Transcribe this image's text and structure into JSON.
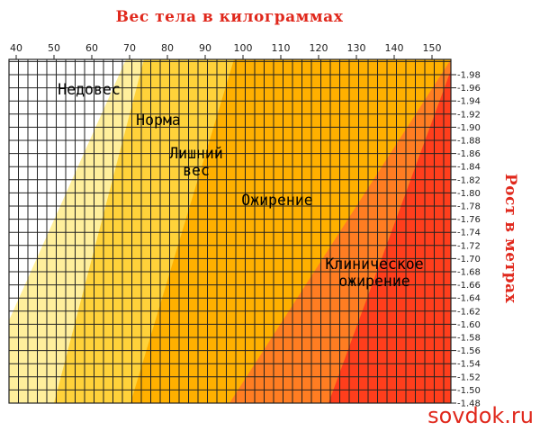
{
  "chart_data": {
    "type": "heatmap",
    "title": "Вес тела в килограммах",
    "ylabel": "Рост в метрах",
    "xlim": [
      40,
      155
    ],
    "ylim": [
      1.48,
      2.0
    ],
    "x_ticks": [
      40,
      50,
      60,
      70,
      80,
      90,
      100,
      110,
      120,
      130,
      140,
      150
    ],
    "y_ticks": [
      "1.98",
      "1.96",
      "1.94",
      "1.92",
      "1.90",
      "1.88",
      "1.86",
      "1.84",
      "1.82",
      "1.80",
      "1.78",
      "1.76",
      "1.74",
      "1.72",
      "1.70",
      "1.68",
      "1.66",
      "1.64",
      "1.62",
      "1.60",
      "1.58",
      "1.56",
      "1.54",
      "1.52",
      "1.50",
      "1.48"
    ],
    "zones": [
      {
        "label_lines": [
          "Недовес"
        ],
        "color": "#ffffff"
      },
      {
        "label_lines": [
          "Норма"
        ],
        "color": "#ffd23a"
      },
      {
        "label_lines": [
          "Лишний",
          "вес"
        ],
        "color": "#ffb000"
      },
      {
        "label_lines": [
          "Ожирение"
        ],
        "color": "#ff7d22"
      },
      {
        "label_lines": [
          "Клиническое",
          "ожирение"
        ],
        "color": "#ff3e1c"
      }
    ],
    "grid": true
  },
  "watermark": "sovdok.ru"
}
